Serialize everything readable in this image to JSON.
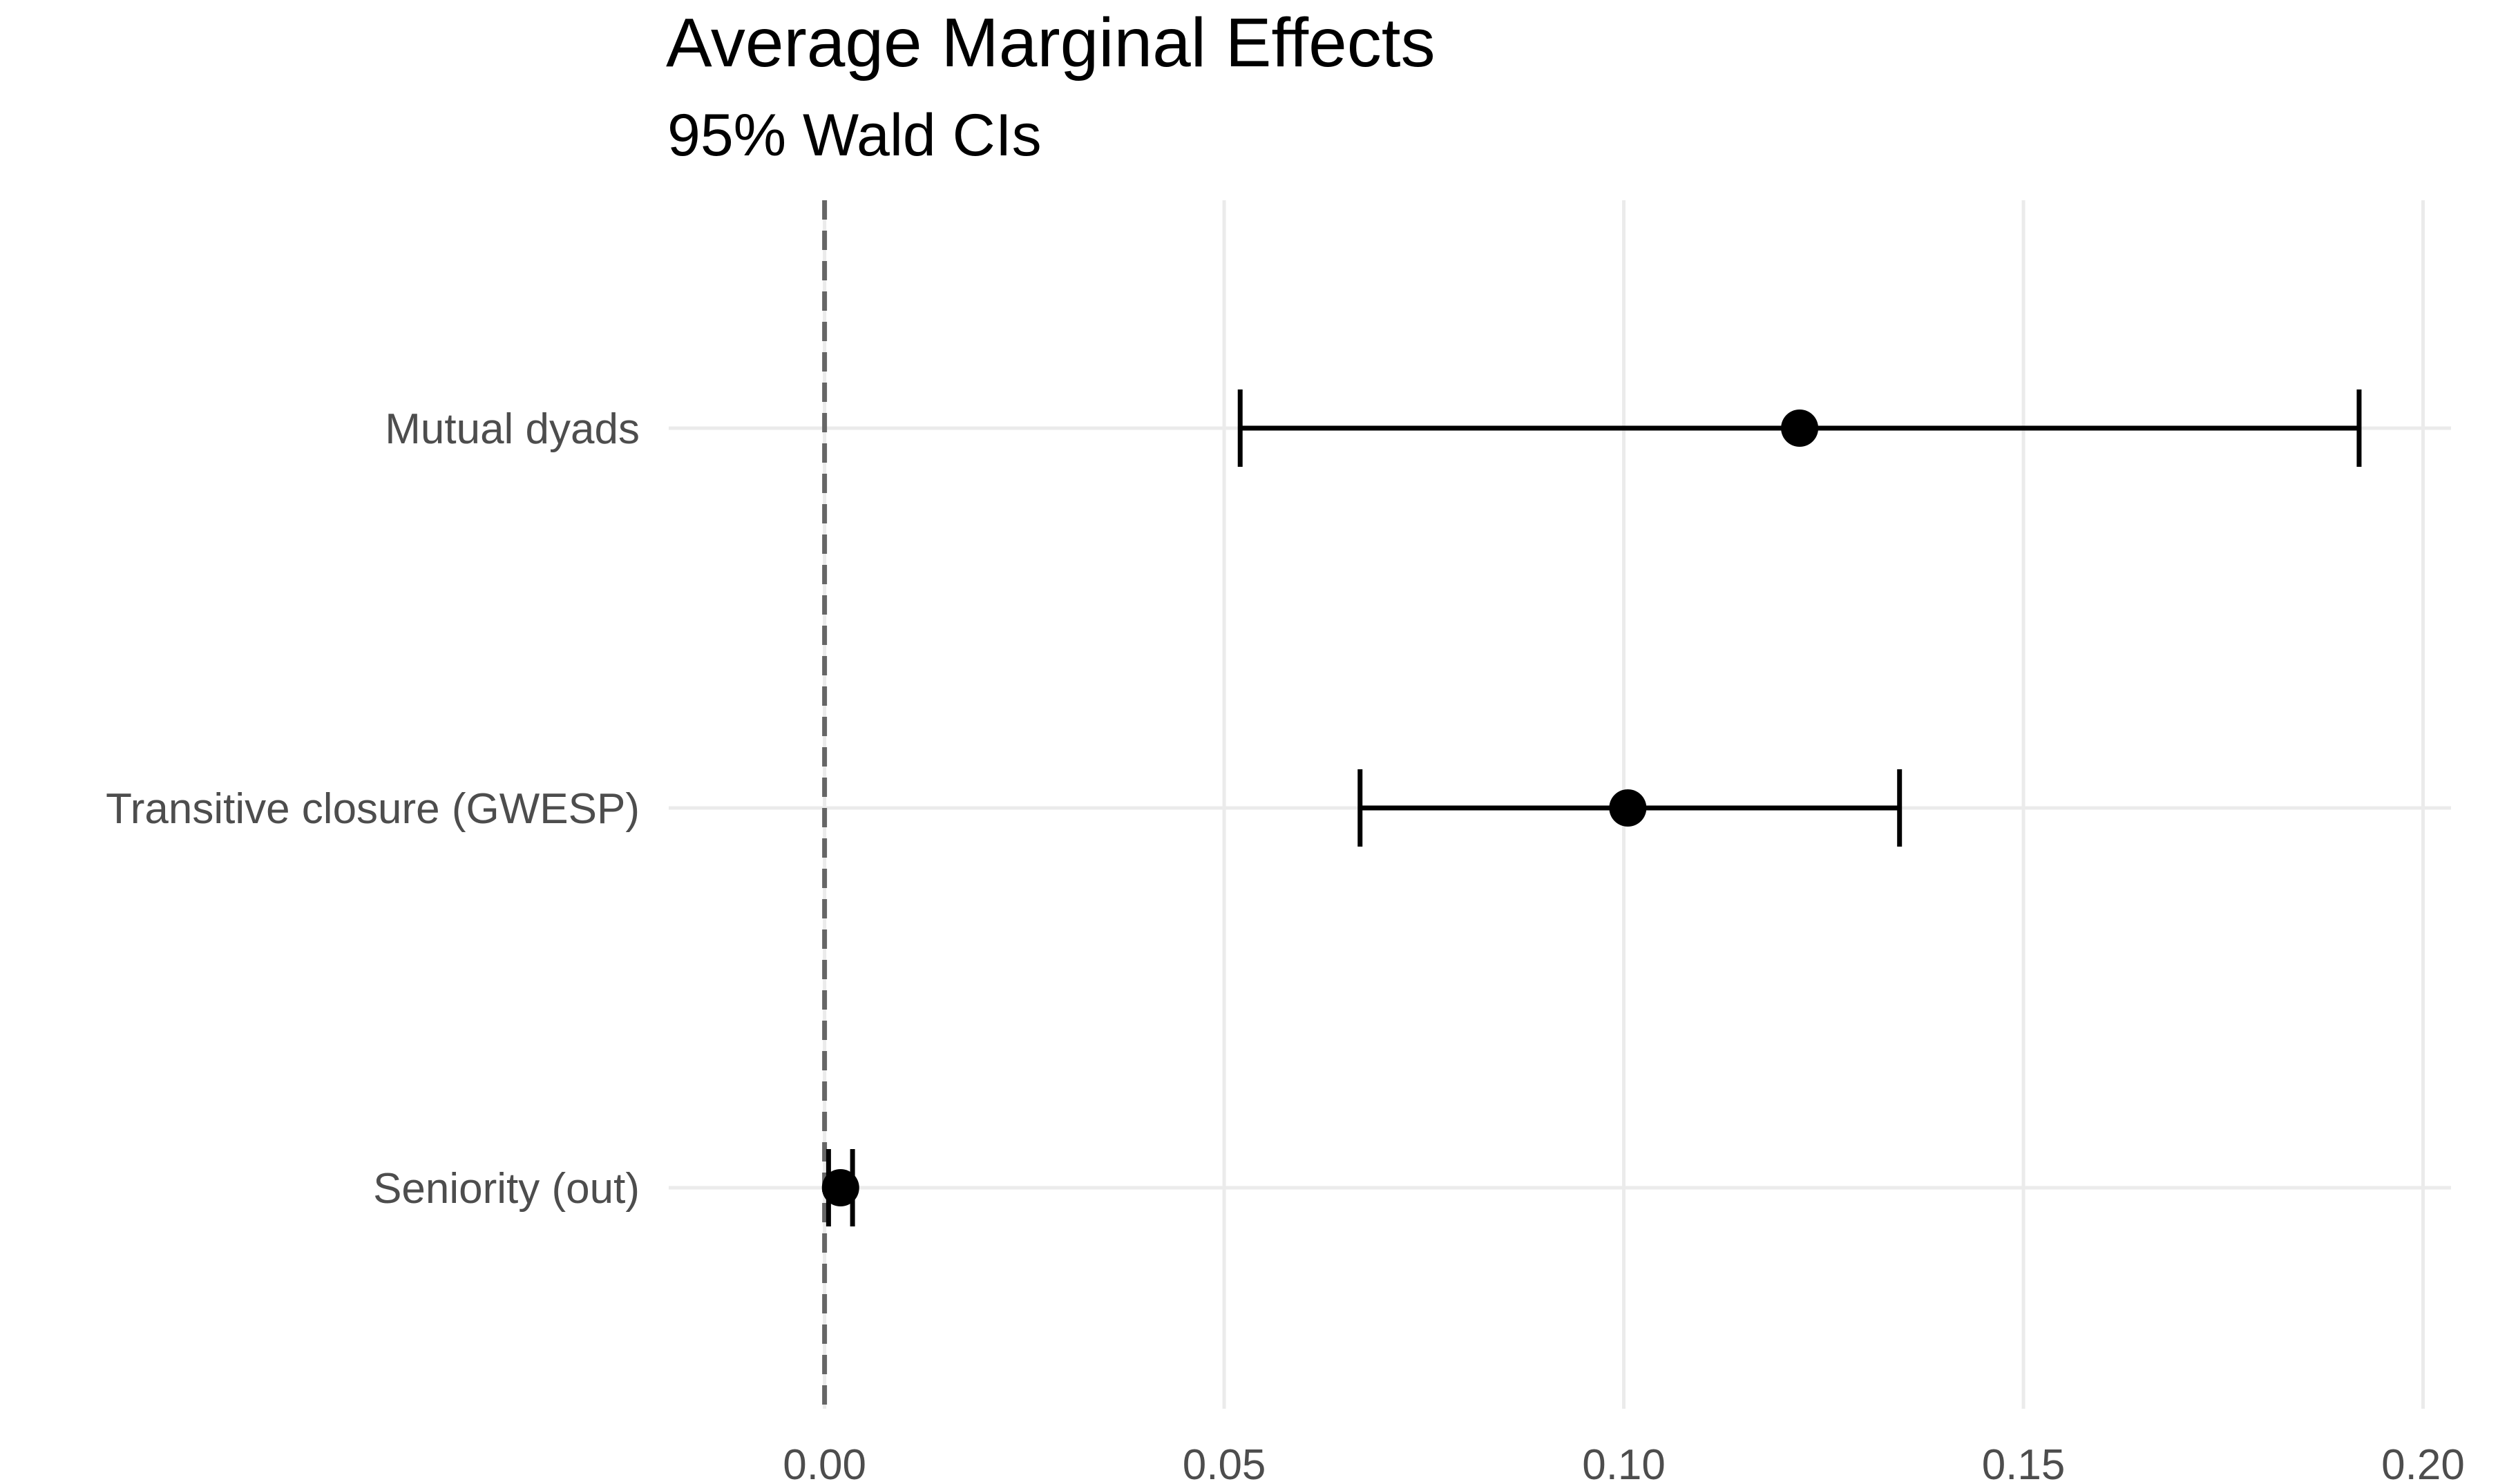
{
  "chart_data": {
    "type": "scatter",
    "title": "Average Marginal Effects",
    "subtitle": "95% Wald CIs",
    "xlabel": "",
    "ylabel": "",
    "xlim": [
      -0.0195,
      0.2035
    ],
    "xticks": [
      0.0,
      0.05,
      0.1,
      0.15,
      0.2
    ],
    "xtick_labels": [
      "0.00",
      "0.05",
      "0.10",
      "0.15",
      "0.20"
    ],
    "reference_line": {
      "x": 0,
      "style": "dashed",
      "color": "#666666"
    },
    "grid": true,
    "legend": "none",
    "categories": [
      "Mutual dyads",
      "Transitive closure (GWESP)",
      "Seniority (out)"
    ],
    "points": [
      {
        "label": "Mutual dyads",
        "estimate": 0.122,
        "ci_low": 0.052,
        "ci_high": 0.192
      },
      {
        "label": "Transitive closure (GWESP)",
        "estimate": 0.1005,
        "ci_low": 0.067,
        "ci_high": 0.1345
      },
      {
        "label": "Seniority (out)",
        "estimate": 0.002,
        "ci_low": 0.0005,
        "ci_high": 0.0035
      }
    ],
    "colors": {
      "point": "#000000",
      "grid": "#ebebeb",
      "axis_text": "#4d4d4d"
    }
  }
}
